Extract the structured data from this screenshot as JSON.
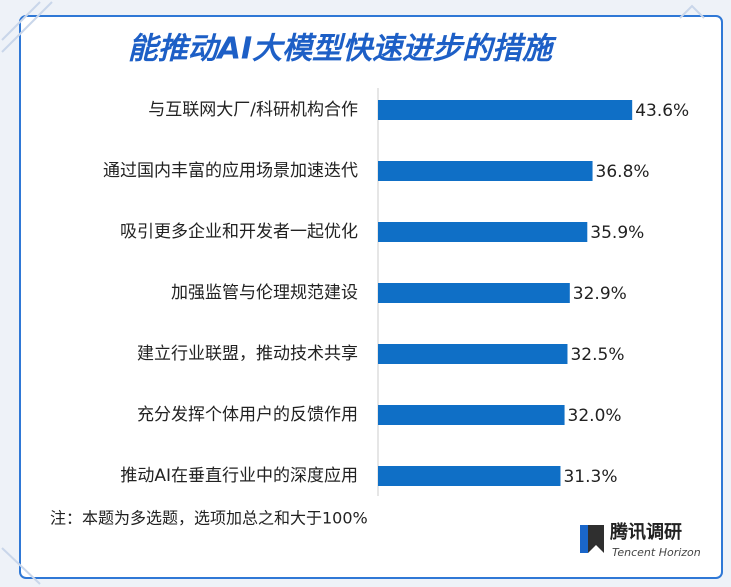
{
  "chart_data": {
    "type": "bar",
    "orientation": "horizontal",
    "title": "能推动AI大模型快速进步的措施",
    "categories": [
      "与互联网大厂/科研机构合作",
      "通过国内丰富的应用场景加速迭代",
      "吸引更多企业和开发者一起优化",
      "加强监管与伦理规范建设",
      "建立行业联盟，推动技术共享",
      "充分发挥个体用户的反馈作用",
      "推动AI在垂直行业中的深度应用"
    ],
    "values": [
      43.6,
      36.8,
      35.9,
      32.9,
      32.5,
      32.0,
      31.3
    ],
    "value_labels": [
      "43.6%",
      "36.8%",
      "35.9%",
      "32.9%",
      "32.5%",
      "32.0%",
      "31.3%"
    ],
    "color": "#0f6fc6",
    "note": "注：本题为多选题，选项加总之和大于100%",
    "brand": "腾讯调研",
    "brand_subtitle": "Tencent Horizon"
  }
}
